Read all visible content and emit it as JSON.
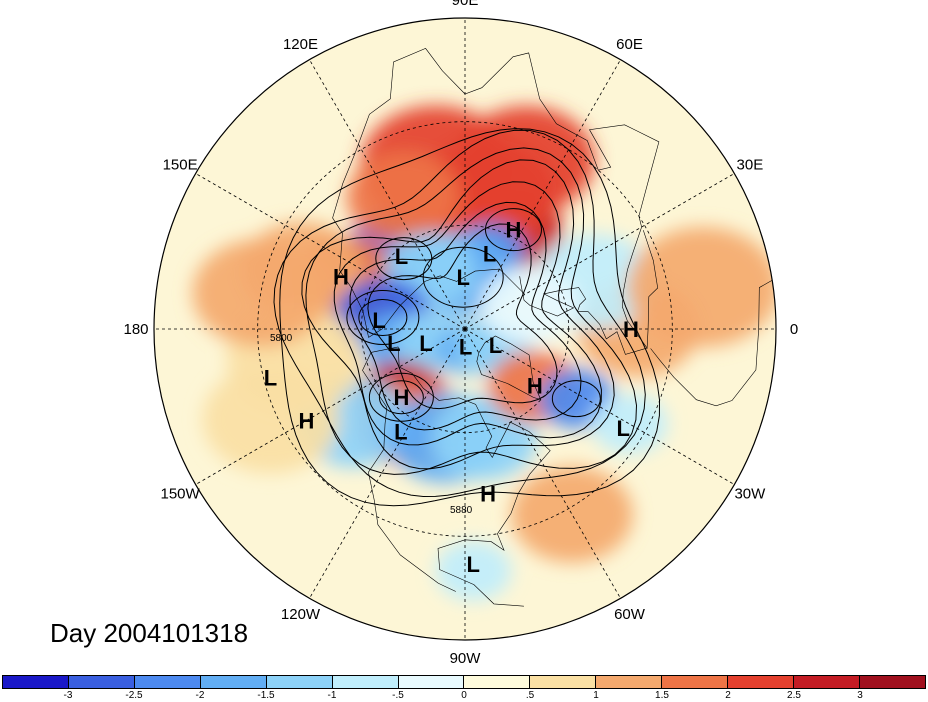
{
  "title": "Day 2004101318",
  "lon_labels": [
    {
      "text": "90E",
      "lon": 90
    },
    {
      "text": "60E",
      "lon": 60
    },
    {
      "text": "30E",
      "lon": 30
    },
    {
      "text": "0",
      "lon": 0
    },
    {
      "text": "30W",
      "lon": -30
    },
    {
      "text": "60W",
      "lon": -60
    },
    {
      "text": "90W",
      "lon": -90
    },
    {
      "text": "120W",
      "lon": -120
    },
    {
      "text": "150W",
      "lon": -150
    },
    {
      "text": "180",
      "lon": 180
    },
    {
      "text": "150E",
      "lon": 150
    },
    {
      "text": "120E",
      "lon": 120
    }
  ],
  "pressure_centers": [
    {
      "label": "L",
      "lat": 62,
      "lon": 131
    },
    {
      "label": "H",
      "lat": 58,
      "lon": 64
    },
    {
      "label": "L",
      "lat": 67,
      "lon": 72
    },
    {
      "label": "H",
      "lat": 51,
      "lon": 157
    },
    {
      "label": "L",
      "lat": 75,
      "lon": 92
    },
    {
      "label": "L",
      "lat": 65,
      "lon": 174
    },
    {
      "label": "L",
      "lat": 69,
      "lon": -169
    },
    {
      "label": "L",
      "lat": 78,
      "lon": -160
    },
    {
      "label": "L",
      "lat": 80,
      "lon": -28
    },
    {
      "label": "L",
      "lat": 85,
      "lon": -88
    },
    {
      "label": "H",
      "lat": 42,
      "lon": 0
    },
    {
      "label": "H",
      "lat": 64,
      "lon": -39
    },
    {
      "label": "H",
      "lat": 63,
      "lon": -133
    },
    {
      "label": "L",
      "lat": 32,
      "lon": -166
    },
    {
      "label": "H",
      "lat": 37,
      "lon": -150
    },
    {
      "label": "L",
      "lat": 36,
      "lon": -32
    },
    {
      "label": "L",
      "lat": 55,
      "lon": -122
    },
    {
      "label": "H",
      "lat": 42,
      "lon": -82
    },
    {
      "label": "L",
      "lat": 22,
      "lon": -88
    }
  ],
  "contour_labels": [
    "5800",
    "5880"
  ],
  "colorbar": {
    "ticks": [
      "-3",
      "-2.5",
      "-2",
      "-1.5",
      "-1",
      "-.5",
      "0",
      ".5",
      "1",
      "1.5",
      "2",
      "2.5",
      "3"
    ],
    "colors": [
      "#1a18c8",
      "#3a5fe0",
      "#4d8af0",
      "#62aef4",
      "#8dd2f8",
      "#c0eefc",
      "#e8fafe",
      "#fefbdc",
      "#fae0a4",
      "#f4a96e",
      "#ee7446",
      "#e4402e",
      "#c41c24",
      "#a0101e"
    ]
  },
  "anomaly_blobs": [
    {
      "lat": 63,
      "lon": 131,
      "s": 1.6,
      "v": -2.6
    },
    {
      "lat": 58,
      "lon": 64,
      "s": 1.3,
      "v": 2.6
    },
    {
      "lat": 50,
      "lon": 80,
      "s": 1.8,
      "v": 2.4
    },
    {
      "lat": 42,
      "lon": 100,
      "s": 2.0,
      "v": 2.2
    },
    {
      "lat": 38,
      "lon": 70,
      "s": 1.8,
      "v": 2.0
    },
    {
      "lat": 48,
      "lon": 115,
      "s": 1.5,
      "v": 1.6
    },
    {
      "lat": 52,
      "lon": 157,
      "s": 1.4,
      "v": 1.9
    },
    {
      "lat": 40,
      "lon": 160,
      "s": 1.6,
      "v": 1.4
    },
    {
      "lat": 66,
      "lon": 72,
      "s": 0.9,
      "v": -2.2
    },
    {
      "lat": 74,
      "lon": 90,
      "s": 1.4,
      "v": -1.6
    },
    {
      "lat": 70,
      "lon": 120,
      "s": 1.2,
      "v": -1.4
    },
    {
      "lat": 66,
      "lon": 172,
      "s": 1.3,
      "v": -2.8
    },
    {
      "lat": 70,
      "lon": -168,
      "s": 1.0,
      "v": -1.8
    },
    {
      "lat": 80,
      "lon": -160,
      "s": 1.0,
      "v": -1.2
    },
    {
      "lat": 84,
      "lon": -88,
      "s": 0.8,
      "v": -1.8
    },
    {
      "lat": 80,
      "lon": -30,
      "s": 1.0,
      "v": -1.2
    },
    {
      "lat": 63,
      "lon": -133,
      "s": 1.2,
      "v": 2.7
    },
    {
      "lat": 58,
      "lon": -120,
      "s": 1.4,
      "v": 1.5
    },
    {
      "lat": 55,
      "lon": -122,
      "s": 0.8,
      "v": -2.6
    },
    {
      "lat": 48,
      "lon": -140,
      "s": 1.5,
      "v": -1.5
    },
    {
      "lat": 58,
      "lon": -100,
      "s": 1.5,
      "v": -1.6
    },
    {
      "lat": 58,
      "lon": -80,
      "s": 1.4,
      "v": -1.4
    },
    {
      "lat": 64,
      "lon": -40,
      "s": 1.2,
      "v": 1.8
    },
    {
      "lat": 52,
      "lon": -32,
      "s": 1.0,
      "v": -2.2
    },
    {
      "lat": 35,
      "lon": -30,
      "s": 1.0,
      "v": -0.8
    },
    {
      "lat": 40,
      "lon": 0,
      "s": 1.6,
      "v": 1.2
    },
    {
      "lat": 50,
      "lon": 20,
      "s": 1.6,
      "v": -0.6
    },
    {
      "lat": 20,
      "lon": 10,
      "s": 2.0,
      "v": 1.4
    },
    {
      "lat": 40,
      "lon": -170,
      "s": 1.8,
      "v": 0.8
    },
    {
      "lat": 28,
      "lon": -155,
      "s": 1.8,
      "v": 0.6
    },
    {
      "lat": 30,
      "lon": 170,
      "s": 1.8,
      "v": 1.0
    },
    {
      "lat": 28,
      "lon": -60,
      "s": 1.6,
      "v": 1.0
    },
    {
      "lat": 20,
      "lon": -88,
      "s": 1.0,
      "v": -0.8
    },
    {
      "lat": 70,
      "lon": 20,
      "s": 1.3,
      "v": -0.5
    }
  ]
}
